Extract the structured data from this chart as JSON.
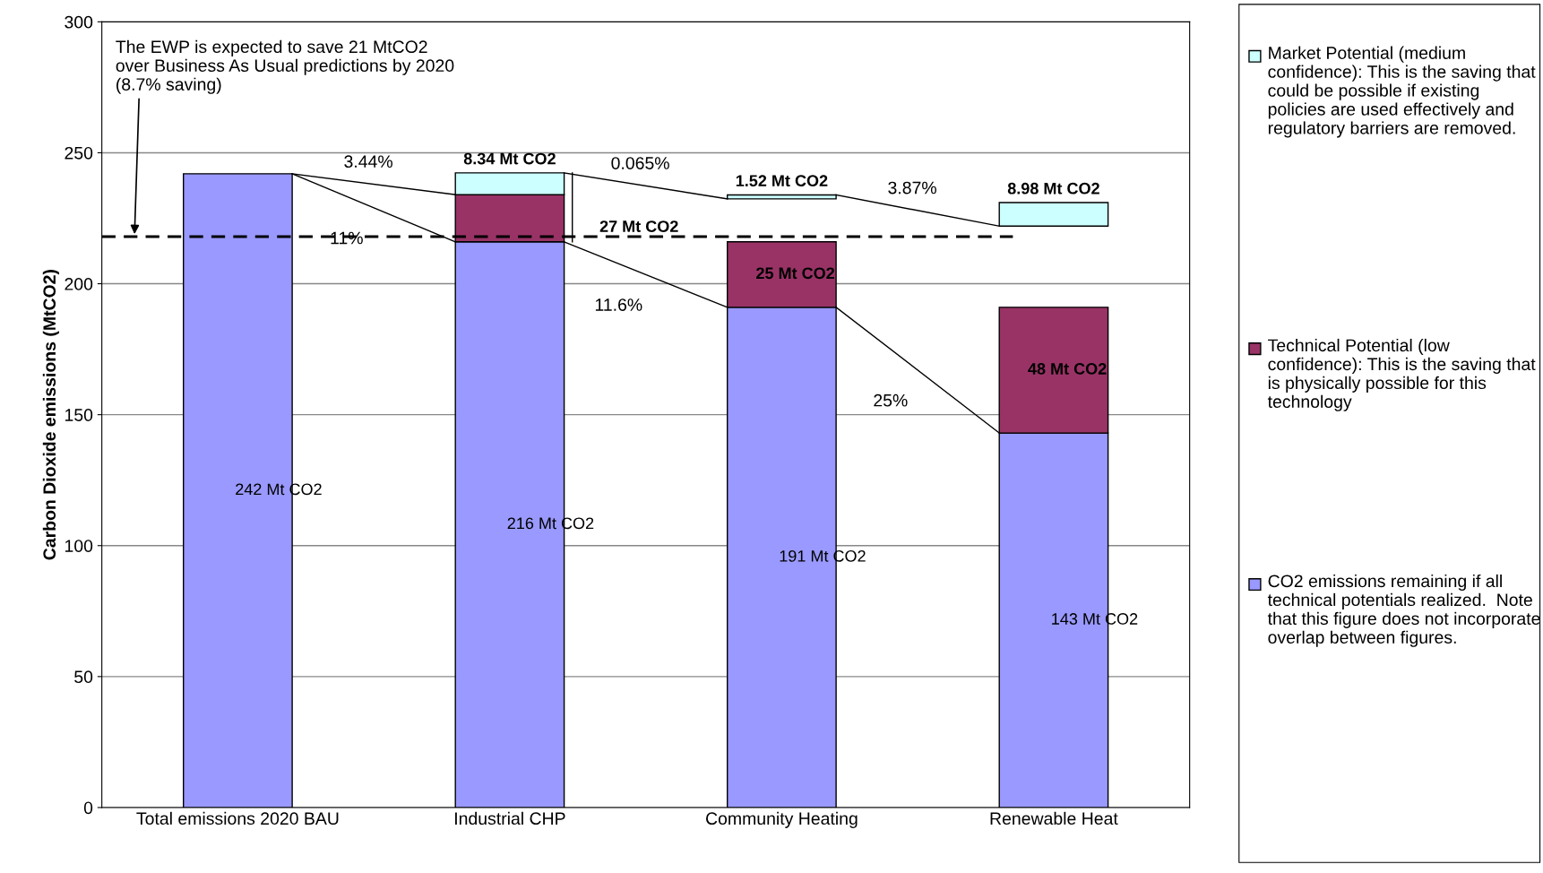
{
  "chart_data": {
    "type": "bar",
    "categories": [
      "Total emissions 2020 BAU",
      "Industrial CHP",
      "Community Heating",
      "Renewable Heat"
    ],
    "ylabel": "Carbon Dioxide emissions (MtCO2)",
    "ylim": [
      0,
      300
    ],
    "yticks": [
      0,
      50,
      100,
      150,
      200,
      250,
      300
    ],
    "grid": "y",
    "legend": "right",
    "series": [
      {
        "name": "CO2 emissions remaining if all technical potentials realized.  Note that this figure does not incorporate overlap between figures.",
        "color": "#9999ff",
        "values": [
          242,
          216,
          191,
          143
        ],
        "base": [
          0,
          0,
          0,
          0
        ],
        "value_labels": [
          "242 Mt CO2",
          "216 Mt CO2",
          "191 Mt CO2",
          "143 Mt CO2"
        ]
      },
      {
        "name": "Technical Potential (low confidence): This is the saving that is physically possible for this technology",
        "color": "#993366",
        "values": [
          null,
          18,
          25,
          48
        ],
        "base": [
          null,
          216,
          191,
          143
        ],
        "value_labels": [
          null,
          null,
          "25 Mt CO2",
          "48 Mt CO2"
        ]
      },
      {
        "name": "Market Potential (medium confidence): This is the saving that could be possible if existing policies are used effectively and regulatory barriers are removed.",
        "color": "#ccffff",
        "values": [
          null,
          8.34,
          1.52,
          8.98
        ],
        "base": [
          null,
          234,
          232.4,
          222
        ],
        "value_labels": [
          null,
          "8.34 Mt CO2",
          "1.52 Mt CO2",
          "8.98 Mt CO2"
        ]
      }
    ],
    "ref_lines": [
      {
        "axis": "y",
        "value": 218,
        "line_style": "dashed",
        "color": "#000000"
      }
    ],
    "annotations": [
      "The EWP is expected to save 21 MtCO2\nover Business As Usual predictions by 2020\n(8.7% saving)",
      "27 Mt CO2",
      "3.44%",
      "11%",
      "0.065%",
      "11.6%",
      "3.87%",
      "25%"
    ]
  }
}
